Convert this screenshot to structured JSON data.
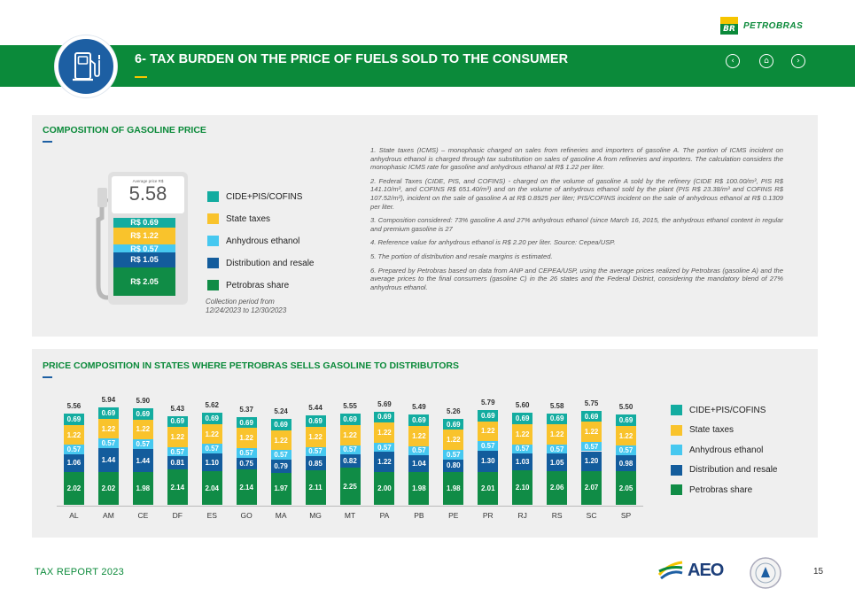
{
  "brand": {
    "logo": "BR",
    "name": "PETROBRAS"
  },
  "header": {
    "title": "6- TAX BURDEN ON THE PRICE OF FUELS SOLD TO THE CONSUMER",
    "icon": "fuel-pump-icon",
    "nav": {
      "prev": "‹",
      "home": "⌂",
      "next": "›"
    }
  },
  "colors": {
    "green": "#0b8a3a",
    "blue": "#1d5fa3",
    "cide": "#13aca0",
    "state": "#f9c32c",
    "ethanol": "#46c8f0",
    "distribution": "#135c9c",
    "petrobras": "#108c46"
  },
  "gasoline": {
    "title": "COMPOSITION OF GASOLINE PRICE",
    "avg_label": "Average price R$",
    "avg_price": "5.58",
    "segments": [
      {
        "label": "R$ 0.69",
        "key": "cide",
        "value": 0.69
      },
      {
        "label": "R$ 1.22",
        "key": "state",
        "value": 1.22
      },
      {
        "label": "R$ 0.57",
        "key": "ethanol",
        "value": 0.57
      },
      {
        "label": "R$ 1.05",
        "key": "distribution",
        "value": 1.05
      },
      {
        "label": "R$ 2.05",
        "key": "petrobras",
        "value": 2.05
      }
    ],
    "legend": [
      "CIDE+PIS/COFINS",
      "State taxes",
      "Anhydrous ethanol",
      "Distribution and resale",
      "Petrobras share"
    ],
    "collection": "Collection period from",
    "collection2": "12/24/2023 to 12/30/2023"
  },
  "notes": [
    "1. State taxes (ICMS) – monophasic charged on sales from refineries and importers of gasoline A. The portion of ICMS incident on anhydrous ethanol is charged through tax substitution on sales of gasoline A from refineries and importers. The calculation considers the monophasic ICMS rate for gasoline and anhydrous ethanol at R$ 1.22 per liter.",
    "2. Federal Taxes (CIDE, PIS, and COFINS) - charged on the volume of gasoline A sold by the refinery (CIDE R$ 100.00/m³, PIS R$ 141.10/m³, and COFINS R$ 651.40/m³) and on the volume of anhydrous ethanol sold by the plant (PIS R$ 23.38/m³ and COFINS R$ 107.52/m³), incident on the sale of gasoline A at R$ 0.8925 per liter; PIS/COFINS incident on the sale of anhydrous ethanol at R$ 0.1309 per liter.",
    "3. Composition considered: 73% gasoline A and 27% anhydrous ethanol (since March 16, 2015, the anhydrous ethanol content in regular and premium gasoline is 27",
    "4. Reference value for anhydrous ethanol is R$ 2.20 per liter. Source: Cepea/USP.",
    "5. The portion of distribution and resale margins is estimated.",
    "6. Prepared by Petrobras based on data from ANP and CEPEA/USP, using the average prices realized by Petrobras (gasoline A) and the average prices to the final consumers (gasoline C) in the 26 states and the Federal District, considering the mandatory blend of 27% anhydrous ethanol."
  ],
  "states": {
    "title": "PRICE COMPOSITION IN STATES WHERE PETROBRAS SELLS GASOLINE TO DISTRIBUTORS",
    "legend": [
      "CIDE+PIS/COFINS",
      "State taxes",
      "Anhydrous ethanol",
      "Distribution and resale",
      "Petrobras share"
    ]
  },
  "chart_data": {
    "type": "bar",
    "stacked": true,
    "title": "PRICE COMPOSITION IN STATES WHERE PETROBRAS SELLS GASOLINE TO DISTRIBUTORS",
    "categories": [
      "AL",
      "AM",
      "CE",
      "DF",
      "ES",
      "GO",
      "MA",
      "MG",
      "MT",
      "PA",
      "PB",
      "PE",
      "PR",
      "RJ",
      "RS",
      "SC",
      "SP"
    ],
    "totals": [
      "5.56",
      "5.94",
      "5.90",
      "5.43",
      "5.62",
      "5.37",
      "5.24",
      "5.44",
      "5.55",
      "5.69",
      "5.49",
      "5.26",
      "5.79",
      "5.60",
      "5.58",
      "5.75",
      "5.50"
    ],
    "series": [
      {
        "name": "Petrobras share",
        "values": [
          "2.02",
          "2.02",
          "1.98",
          "2.14",
          "2.04",
          "2.14",
          "1.97",
          "2.11",
          "2.25",
          "2.00",
          "1.98",
          "1.98",
          "2.01",
          "2.10",
          "2.06",
          "2.07",
          "2.05"
        ]
      },
      {
        "name": "Distribution and resale",
        "values": [
          "1.06",
          "1.44",
          "1.44",
          "0.81",
          "1.10",
          "0.75",
          "0.79",
          "0.85",
          "0.82",
          "1.22",
          "1.04",
          "0.80",
          "1.30",
          "1.03",
          "1.05",
          "1.20",
          "0.98"
        ]
      },
      {
        "name": "Anhydrous ethanol",
        "values": [
          "0.57",
          "0.57",
          "0.57",
          "0.57",
          "0.57",
          "0.57",
          "0.57",
          "0.57",
          "0.57",
          "0.57",
          "0.57",
          "0.57",
          "0.57",
          "0.57",
          "0.57",
          "0.57",
          "0.57"
        ]
      },
      {
        "name": "State taxes",
        "values": [
          "1.22",
          "1.22",
          "1.22",
          "1.22",
          "1.22",
          "1.22",
          "1.22",
          "1.22",
          "1.22",
          "1.22",
          "1.22",
          "1.22",
          "1.22",
          "1.22",
          "1.22",
          "1.22",
          "1.22"
        ]
      },
      {
        "name": "CIDE+PIS/COFINS",
        "values": [
          "0.69",
          "0.69",
          "0.69",
          "0.69",
          "0.69",
          "0.69",
          "0.69",
          "0.69",
          "0.69",
          "0.69",
          "0.69",
          "0.69",
          "0.69",
          "0.69",
          "0.69",
          "0.69",
          "0.69"
        ]
      }
    ],
    "legend": "right"
  },
  "footer": {
    "left": "TAX REPORT 2023",
    "page": "15",
    "logo": "AEO"
  }
}
